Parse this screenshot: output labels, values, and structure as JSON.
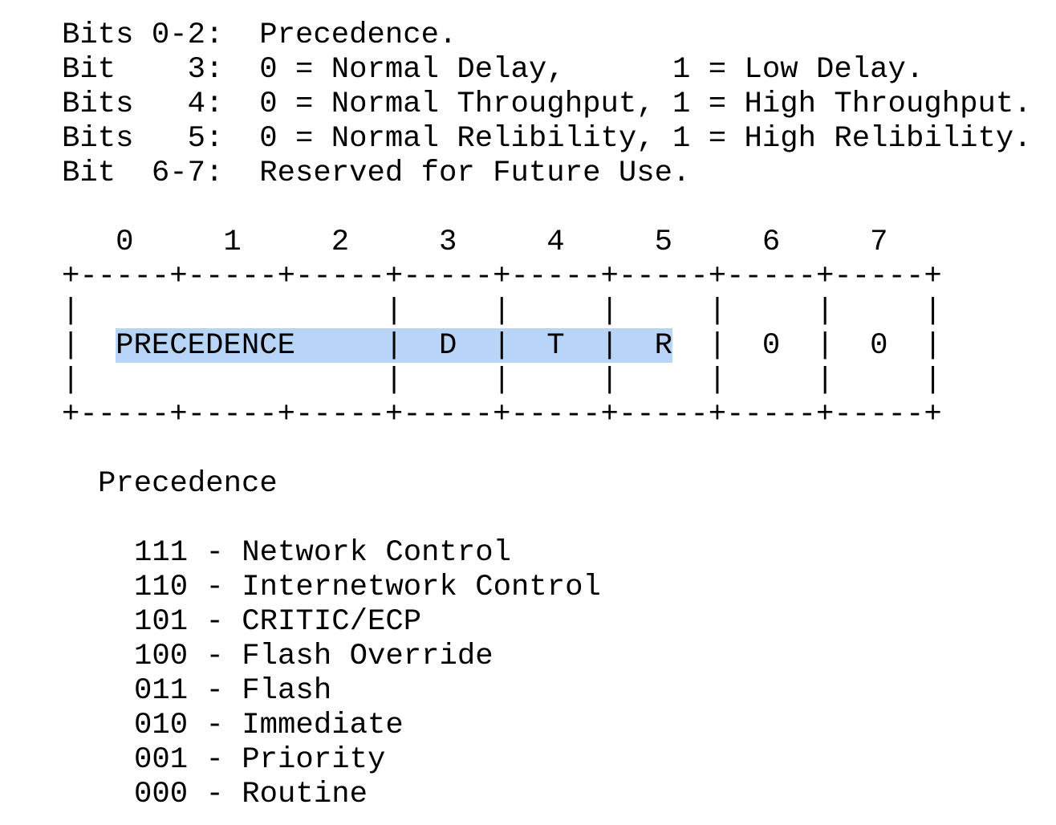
{
  "bit_descriptions": [
    "Bits 0-2:  Precedence.",
    "Bit    3:  0 = Normal Delay,      1 = Low Delay.",
    "Bits   4:  0 = Normal Throughput, 1 = High Throughput.",
    "Bits   5:  0 = Normal Relibility, 1 = High Relibility.",
    "Bit  6-7:  Reserved for Future Use."
  ],
  "diagram": {
    "bit_numbers": "   0     1     2     3     4     5     6     7",
    "border_top": "+-----+-----+-----+-----+-----+-----+-----+-----+",
    "spacer_top": "|                 |     |     |     |     |     |",
    "field_row": "|  PRECEDENCE     |  D  |  T  |  R  |  0  |  0  |",
    "spacer_bottom": "|                 |     |     |     |     |     |",
    "border_bottom": "+-----+-----+-----+-----+-----+-----+-----+-----+"
  },
  "precedence": {
    "heading": "Precedence",
    "values": [
      "111 - Network Control",
      "110 - Internetwork Control",
      "101 - CRITIC/ECP",
      "100 - Flash Override",
      "011 - Flash",
      "010 - Immediate",
      "001 - Priority",
      "000 - Routine"
    ]
  },
  "colors": {
    "highlight": "#b8d4f7"
  }
}
